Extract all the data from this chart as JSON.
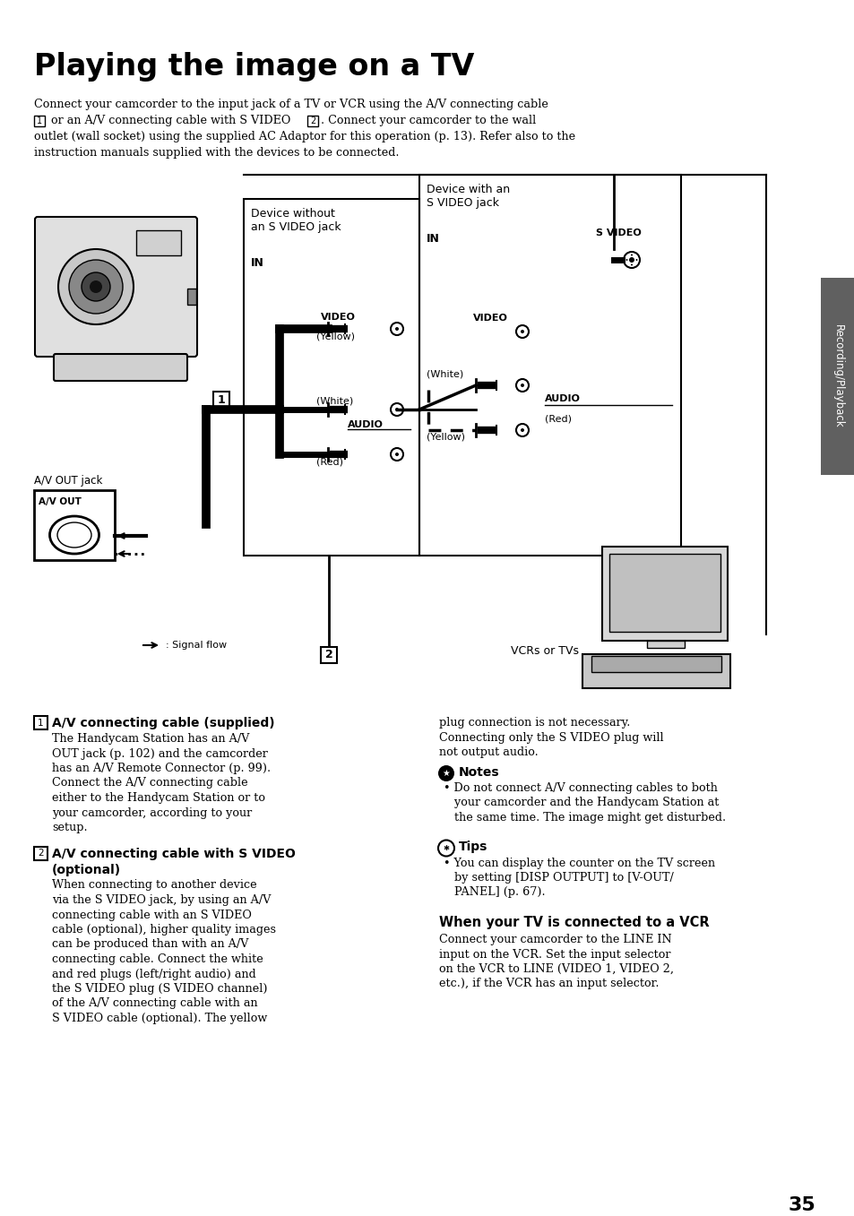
{
  "title": "Playing the image on a TV",
  "page_number": "35",
  "bg_color": "#ffffff",
  "text_color": "#000000",
  "sidebar_color": "#606060",
  "intro_line1": "Connect your camcorder to the input jack of a TV or VCR using the A/V connecting cable",
  "intro_line2a": " or an A/V connecting cable with S VIDEO ",
  "intro_line2b": ". Connect your camcorder to the wall",
  "intro_line3": "outlet (wall socket) using the supplied AC Adaptor for this operation (p. 13). Refer also to the",
  "intro_line4": "instruction manuals supplied with the devices to be connected.",
  "dev1_label": "Device without\nan S VIDEO jack",
  "dev2_label": "Device with an\nS VIDEO jack",
  "in_label": "IN",
  "svideo_label": "S VIDEO",
  "video_label": "VIDEO",
  "audio_label": "AUDIO",
  "yellow1": "(Yellow)",
  "white1": "(White)",
  "red1": "(Red)",
  "white2": "(White)",
  "red2": "(Red)",
  "yellow2": "(Yellow)",
  "av_out_jack_label": "A/V OUT jack",
  "av_out_box_label": "A/V OUT",
  "signal_flow_label": ": Signal flow",
  "vcrs_tvs_label": "VCRs or TVs",
  "s1_title": "A/V connecting cable (supplied)",
  "s1_body": [
    "The Handycam Station has an A/V",
    "OUT jack (p. 102) and the camcorder",
    "has an A/V Remote Connector (p. 99).",
    "Connect the A/V connecting cable",
    "either to the Handycam Station or to",
    "your camcorder, according to your",
    "setup."
  ],
  "s2_title1": "A/V connecting cable with S VIDEO",
  "s2_title2": "(optional)",
  "s2_body": [
    "When connecting to another device",
    "via the S VIDEO jack, by using an A/V",
    "connecting cable with an S VIDEO",
    "cable (optional), higher quality images",
    "can be produced than with an A/V",
    "connecting cable. Connect the white",
    "and red plugs (left/right audio) and",
    "the S VIDEO plug (S VIDEO channel)",
    "of the A/V connecting cable with an",
    "S VIDEO cable (optional). The yellow"
  ],
  "rc_line1": "plug connection is not necessary.",
  "rc_line2": "Connecting only the S VIDEO plug will",
  "rc_line3": "not output audio.",
  "notes_title": "Notes",
  "notes_body": [
    "Do not connect A/V connecting cables to both",
    "your camcorder and the Handycam Station at",
    "the same time. The image might get disturbed."
  ],
  "tips_title": "Tips",
  "tips_body": [
    "You can display the counter on the TV screen",
    "by setting [DISP OUTPUT] to [V-OUT/",
    "PANEL] (p. 67)."
  ],
  "vcr_title": "When your TV is connected to a VCR",
  "vcr_body": [
    "Connect your camcorder to the LINE IN",
    "input on the VCR. Set the input selector",
    "on the VCR to LINE (VIDEO 1, VIDEO 2,",
    "etc.), if the VCR has an input selector."
  ],
  "sidebar_text": "Recording/Playback"
}
